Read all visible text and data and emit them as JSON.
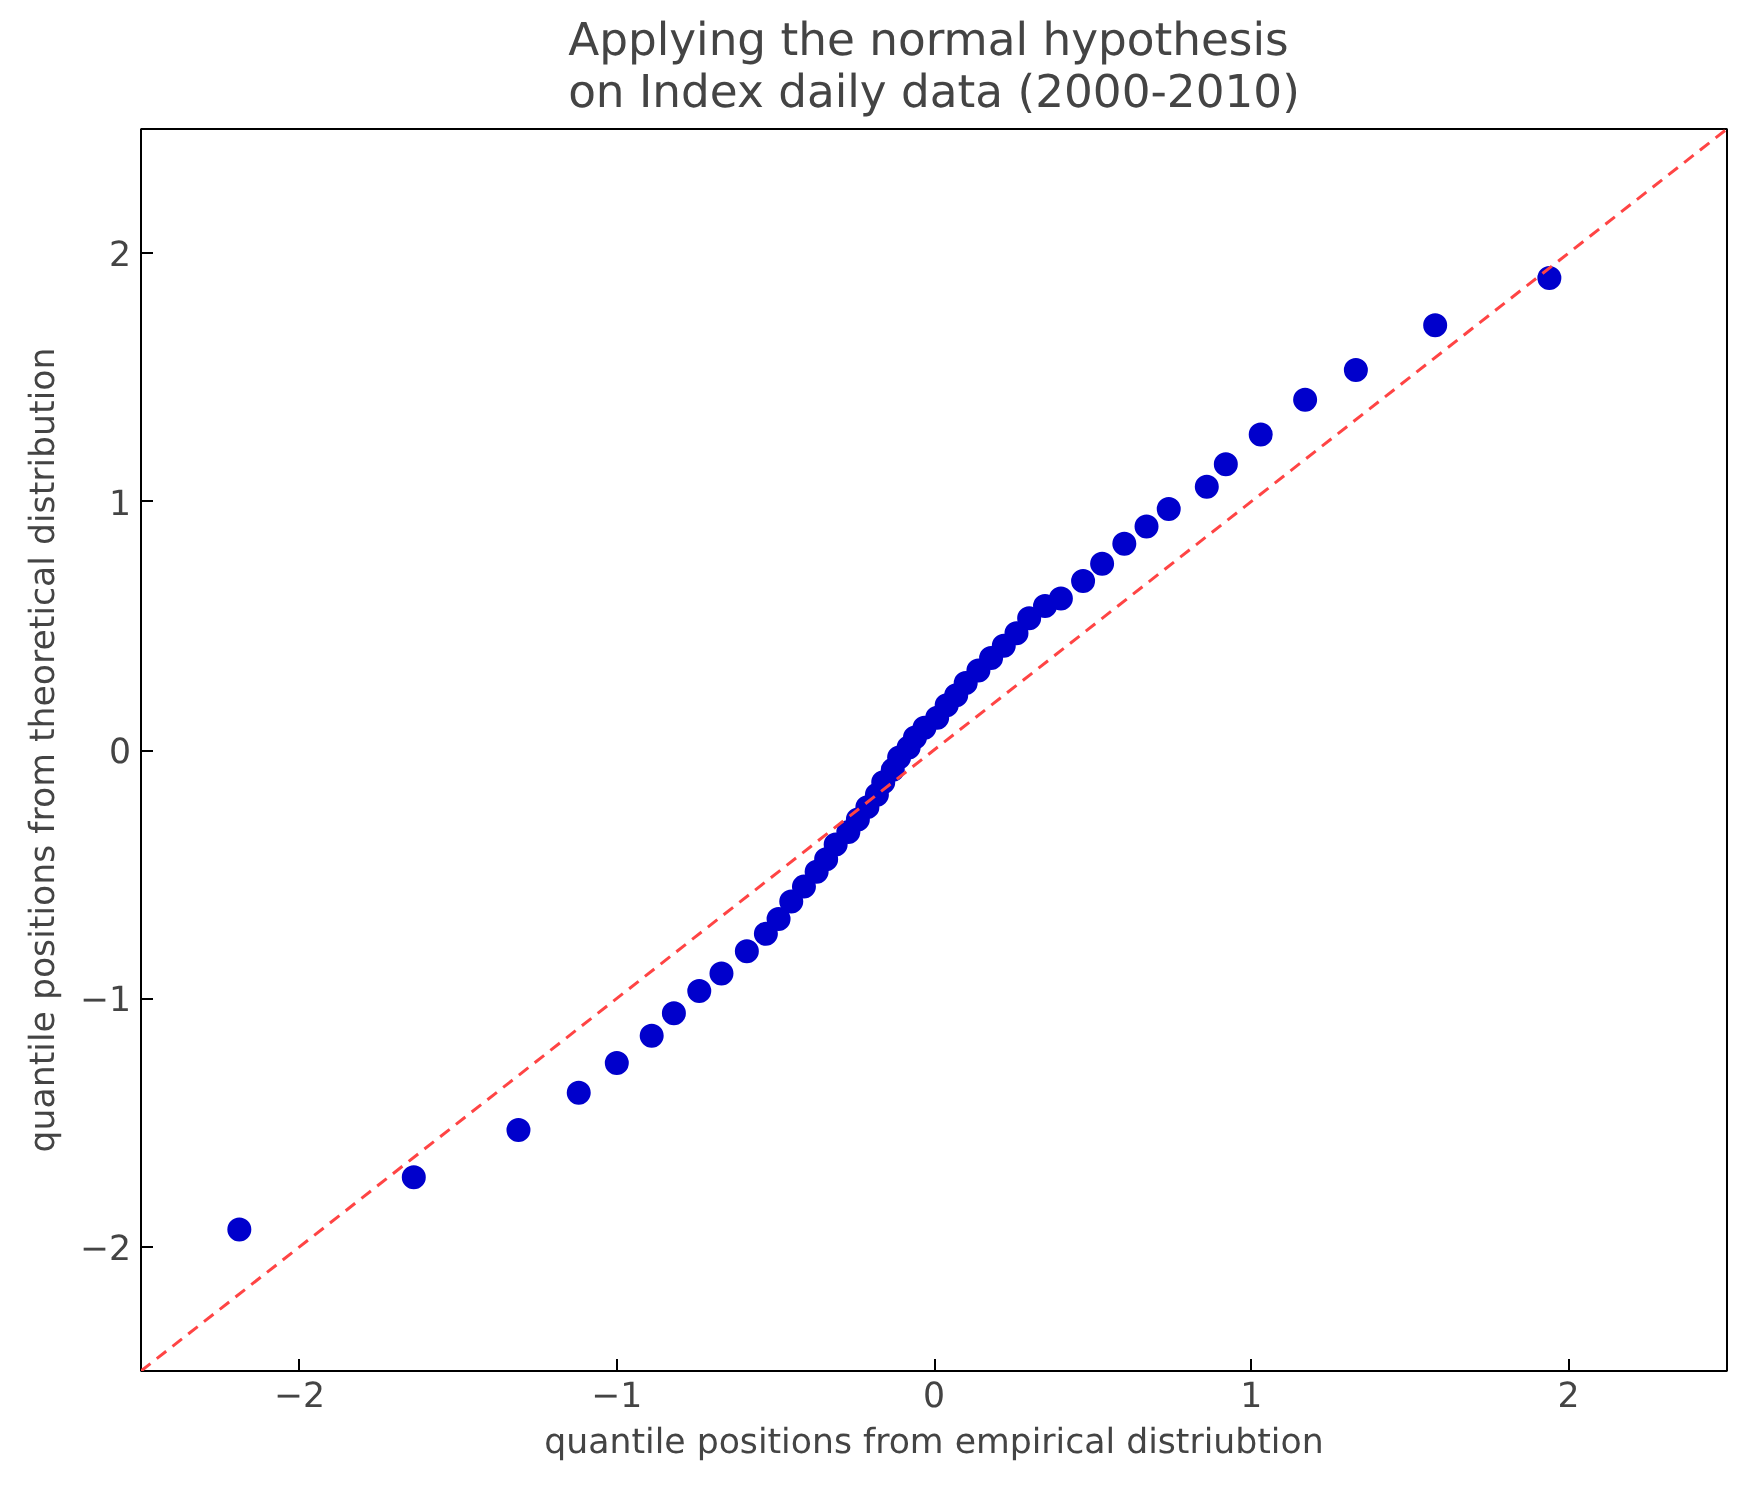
{
  "chart_data": {
    "type": "scatter",
    "title": "Applying the normal hypothesis\non Index daily data (2000-2010)",
    "xlabel": "quantile positions from empirical distriubtion",
    "ylabel": "quantile positions from theoretical distribution",
    "xlim": [
      -2.5,
      2.5
    ],
    "ylim": [
      -2.5,
      2.5
    ],
    "xticks": [
      {
        "value": -2,
        "label": "−2"
      },
      {
        "value": -1,
        "label": "−1"
      },
      0,
      1,
      2
    ],
    "yticks": [
      {
        "value": -2,
        "label": "−2"
      },
      {
        "value": -1,
        "label": "−1"
      },
      0,
      1,
      2
    ],
    "grid": false,
    "series": [
      {
        "marker": "circle",
        "color": "#0000cc",
        "x": [
          -2.19,
          -1.64,
          -1.31,
          -1.12,
          -1.0,
          -0.89,
          -0.82,
          -0.74,
          -0.67,
          -0.59,
          -0.53,
          -0.49,
          -0.45,
          -0.41,
          -0.37,
          -0.34,
          -0.31,
          -0.27,
          -0.24,
          -0.21,
          -0.18,
          -0.16,
          -0.13,
          -0.11,
          -0.08,
          -0.06,
          -0.03,
          0.01,
          0.04,
          0.07,
          0.1,
          0.14,
          0.18,
          0.22,
          0.26,
          0.3,
          0.35,
          0.4,
          0.47,
          0.53,
          0.6,
          0.67,
          0.74,
          0.86,
          0.92,
          1.03,
          1.17,
          1.33,
          1.58,
          1.94
        ],
        "values": [
          -1.93,
          -1.72,
          -1.53,
          -1.38,
          -1.26,
          -1.15,
          -1.06,
          -0.97,
          -0.9,
          -0.81,
          -0.74,
          -0.68,
          -0.61,
          -0.55,
          -0.49,
          -0.44,
          -0.38,
          -0.33,
          -0.28,
          -0.23,
          -0.18,
          -0.13,
          -0.08,
          -0.03,
          0.01,
          0.05,
          0.09,
          0.13,
          0.18,
          0.22,
          0.27,
          0.32,
          0.37,
          0.42,
          0.47,
          0.53,
          0.58,
          0.61,
          0.68,
          0.75,
          0.83,
          0.9,
          0.97,
          1.06,
          1.15,
          1.27,
          1.41,
          1.53,
          1.71,
          1.9
        ]
      },
      {
        "type": "line",
        "color": "#ff4444",
        "line_style": "dashed",
        "x": [
          -2.5,
          2.5
        ],
        "values": [
          -2.5,
          2.5
        ]
      }
    ]
  }
}
